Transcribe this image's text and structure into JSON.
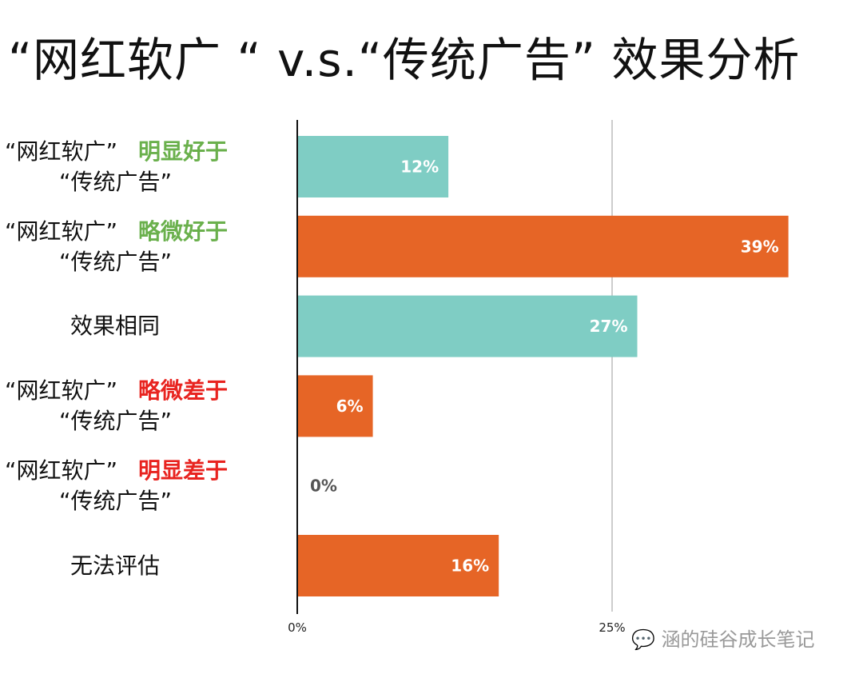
{
  "chart_data": {
    "type": "bar",
    "orientation": "horizontal",
    "title": "“网红软广 “ v.s.“传统广告” 效果分析",
    "categories": [
      {
        "line1": "“网红软广”",
        "highlight": "明显好于",
        "highlight_color": "#6ab04c",
        "line2": "“传统广告”"
      },
      {
        "line1": "“网红软广”",
        "highlight": "略微好于",
        "highlight_color": "#6ab04c",
        "line2": "“传统广告”"
      },
      {
        "line1": "效果相同"
      },
      {
        "line1": "“网红软广”",
        "highlight": "略微差于",
        "highlight_color": "#e8231f",
        "line2": "“传统广告”"
      },
      {
        "line1": "“网红软广”",
        "highlight": "明显差于",
        "highlight_color": "#e8231f",
        "line2": "“传统广告”"
      },
      {
        "line1": "无法评估"
      }
    ],
    "values": [
      12,
      39,
      27,
      6,
      0,
      16
    ],
    "data_labels": [
      "12%",
      "39%",
      "27%",
      "6%",
      "0%",
      "16%"
    ],
    "bar_colors": [
      "#7fcdc4",
      "#e66526",
      "#7fcdc4",
      "#e66526",
      "#e66526",
      "#e66526"
    ],
    "xlim": [
      0,
      39
    ],
    "x_ticks": [
      {
        "value": 0,
        "label": "0%"
      },
      {
        "value": 25,
        "label": "25%"
      }
    ],
    "grid": "vertical line at 25%"
  },
  "watermark": "涵的硅谷成长笔记"
}
